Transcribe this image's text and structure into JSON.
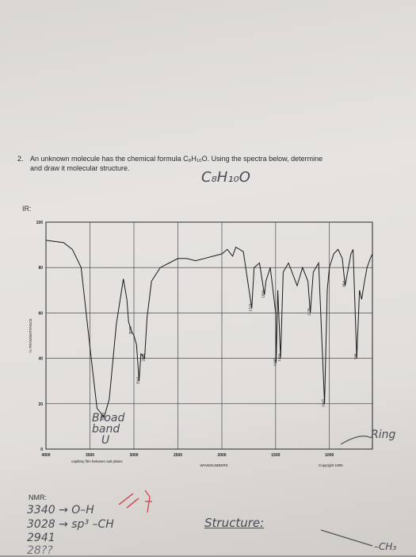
{
  "question": {
    "number": "2.",
    "line1": "An unknown molecule has the chemical formula C₈H₁₀O. Using the spectra below, determine",
    "line2": "and draw it molecular structure."
  },
  "handwriting": {
    "formula": "C₈H₁₀O",
    "broad_band": [
      "Broad",
      "band",
      "U"
    ],
    "ring": "Ring",
    "nmr_notes": [
      "3340 → O–H",
      "3028 → sp³ –CH",
      "2941",
      "28??"
    ],
    "structure": "Structure:",
    "ch3": "–CH₃"
  },
  "labels": {
    "ir": "IR:",
    "nmr": "NMR:"
  },
  "chart_data": {
    "type": "line",
    "ylabel": "% TRANSMITTANCE",
    "xlabel": "WAVENUMBERS",
    "xlim": [
      4000,
      600
    ],
    "ylim": [
      0,
      100
    ],
    "y_ticks": [
      0,
      20,
      40,
      60,
      80,
      100
    ],
    "x_ticks": [
      4000,
      3500,
      3000,
      2500,
      2000,
      1500,
      1000
    ],
    "x_tick_labels": [
      "4000",
      "3500",
      "3000",
      "2500",
      "2000",
      "1500",
      "1000"
    ],
    "grid": true,
    "sample_note": "capillary film between salt plates",
    "copyright": "Copyright 1990",
    "series": [
      {
        "values": [
          [
            4000,
            92
          ],
          [
            3800,
            91
          ],
          [
            3700,
            88
          ],
          [
            3600,
            80
          ],
          [
            3500,
            45
          ],
          [
            3420,
            18
          ],
          [
            3340,
            14
          ],
          [
            3280,
            22
          ],
          [
            3200,
            55
          ],
          [
            3120,
            75
          ],
          [
            3080,
            66
          ],
          [
            3060,
            56
          ],
          [
            3028,
            52
          ],
          [
            3000,
            50
          ],
          [
            2970,
            46
          ],
          [
            2941,
            30
          ],
          [
            2920,
            42
          ],
          [
            2878,
            40
          ],
          [
            2850,
            58
          ],
          [
            2800,
            74
          ],
          [
            2700,
            80
          ],
          [
            2600,
            82
          ],
          [
            2500,
            84
          ],
          [
            2400,
            84
          ],
          [
            2300,
            83
          ],
          [
            2200,
            84
          ],
          [
            2100,
            85
          ],
          [
            2000,
            86
          ],
          [
            1950,
            88
          ],
          [
            1900,
            85
          ],
          [
            1870,
            89
          ],
          [
            1800,
            87
          ],
          [
            1722,
            62
          ],
          [
            1700,
            80
          ],
          [
            1650,
            82
          ],
          [
            1604,
            68
          ],
          [
            1590,
            74
          ],
          [
            1550,
            80
          ],
          [
            1500,
            60
          ],
          [
            1495,
            38
          ],
          [
            1480,
            70
          ],
          [
            1454,
            40
          ],
          [
            1430,
            78
          ],
          [
            1380,
            82
          ],
          [
            1300,
            72
          ],
          [
            1250,
            80
          ],
          [
            1200,
            74
          ],
          [
            1178,
            60
          ],
          [
            1150,
            78
          ],
          [
            1100,
            82
          ],
          [
            1045,
            20
          ],
          [
            1020,
            70
          ],
          [
            1000,
            80
          ],
          [
            960,
            86
          ],
          [
            920,
            88
          ],
          [
            880,
            84
          ],
          [
            854,
            72
          ],
          [
            800,
            86
          ],
          [
            780,
            88
          ],
          [
            746,
            40
          ],
          [
            720,
            70
          ],
          [
            700,
            66
          ],
          [
            680,
            72
          ],
          [
            650,
            80
          ],
          [
            620,
            84
          ],
          [
            600,
            86
          ]
        ]
      }
    ],
    "peak_labels": [
      {
        "x": 3340,
        "label": "3340"
      },
      {
        "x": 3028,
        "label": "3028"
      },
      {
        "x": 2941,
        "label": "2941"
      },
      {
        "x": 2878,
        "label": "2878"
      },
      {
        "x": 1722,
        "label": "1722"
      },
      {
        "x": 1604,
        "label": "1604"
      },
      {
        "x": 1495,
        "label": "1495"
      },
      {
        "x": 1454,
        "label": "1454"
      },
      {
        "x": 1178,
        "label": "1178"
      },
      {
        "x": 1045,
        "label": "1045"
      },
      {
        "x": 854,
        "label": "854"
      },
      {
        "x": 746,
        "label": "746"
      }
    ]
  }
}
